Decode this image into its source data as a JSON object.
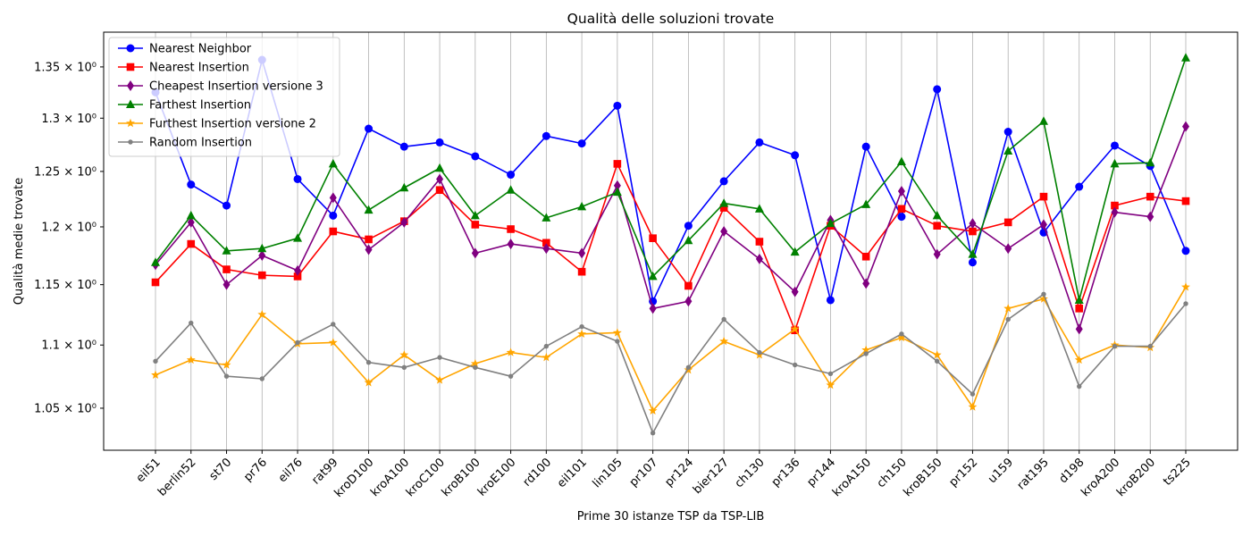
{
  "chart_data": {
    "type": "line",
    "title": "Qualità delle soluzioni trovate",
    "xlabel": "Prime 30 istanze TSP da TSP-LIB",
    "ylabel": "Qualità medie trovate",
    "y_scale": "log",
    "ylim": [
      1.018,
      1.385
    ],
    "y_ticks": [
      {
        "value": 1.05,
        "label": "1.05 × 10⁰"
      },
      {
        "value": 1.1,
        "label": "1.1 × 10⁰"
      },
      {
        "value": 1.15,
        "label": "1.15 × 10⁰"
      },
      {
        "value": 1.2,
        "label": "1.2 × 10⁰"
      },
      {
        "value": 1.25,
        "label": "1.25 × 10⁰"
      },
      {
        "value": 1.3,
        "label": "1.3 × 10⁰"
      },
      {
        "value": 1.35,
        "label": "1.35 × 10⁰"
      }
    ],
    "grid": "vertical",
    "legend_position": "upper-left",
    "categories": [
      "eil51",
      "berlin52",
      "st70",
      "pr76",
      "eil76",
      "rat99",
      "kroD100",
      "kroA100",
      "kroC100",
      "kroB100",
      "kroE100",
      "rd100",
      "eil101",
      "lin105",
      "pr107",
      "pr124",
      "bier127",
      "ch130",
      "pr136",
      "pr144",
      "kroA150",
      "ch150",
      "kroB150",
      "pr152",
      "u159",
      "rat195",
      "d198",
      "kroA200",
      "kroB200",
      "ts225"
    ],
    "series": [
      {
        "name": "Nearest Neighbor",
        "color": "#0000ff",
        "marker": "circle",
        "values": [
          1.325,
          1.238,
          1.219,
          1.357,
          1.243,
          1.21,
          1.29,
          1.273,
          1.277,
          1.264,
          1.247,
          1.283,
          1.276,
          1.312,
          1.136,
          1.201,
          1.241,
          1.277,
          1.265,
          1.137,
          1.273,
          1.209,
          1.328,
          1.169,
          1.287,
          1.195,
          1.236,
          1.274,
          1.255,
          1.179
        ]
      },
      {
        "name": "Nearest Insertion",
        "color": "#ff0000",
        "marker": "square",
        "values": [
          1.152,
          1.185,
          1.163,
          1.158,
          1.157,
          1.196,
          1.189,
          1.205,
          1.233,
          1.202,
          1.198,
          1.186,
          1.161,
          1.257,
          1.19,
          1.149,
          1.217,
          1.187,
          1.112,
          1.201,
          1.174,
          1.216,
          1.201,
          1.196,
          1.204,
          1.227,
          1.13,
          1.219,
          1.227,
          1.223
        ]
      },
      {
        "name": "Cheapest Insertion versione 3",
        "color": "#800080",
        "marker": "diamond",
        "values": [
          1.167,
          1.204,
          1.15,
          1.175,
          1.162,
          1.226,
          1.18,
          1.204,
          1.243,
          1.177,
          1.185,
          1.181,
          1.177,
          1.237,
          1.13,
          1.136,
          1.196,
          1.172,
          1.144,
          1.206,
          1.151,
          1.232,
          1.176,
          1.203,
          1.181,
          1.202,
          1.113,
          1.213,
          1.209,
          1.292
        ]
      },
      {
        "name": "Farthest Insertion",
        "color": "#008000",
        "marker": "triangle",
        "values": [
          1.169,
          1.21,
          1.179,
          1.181,
          1.19,
          1.257,
          1.215,
          1.235,
          1.253,
          1.21,
          1.233,
          1.208,
          1.218,
          1.231,
          1.157,
          1.188,
          1.221,
          1.216,
          1.178,
          1.203,
          1.22,
          1.259,
          1.21,
          1.176,
          1.269,
          1.297,
          1.137,
          1.257,
          1.258,
          1.359
        ]
      },
      {
        "name": "Furthest Insertion versione 2",
        "color": "#ffa500",
        "marker": "star",
        "values": [
          1.076,
          1.088,
          1.084,
          1.125,
          1.101,
          1.102,
          1.07,
          1.092,
          1.072,
          1.085,
          1.094,
          1.09,
          1.109,
          1.11,
          1.048,
          1.08,
          1.103,
          1.092,
          1.113,
          1.068,
          1.096,
          1.106,
          1.092,
          1.051,
          1.13,
          1.138,
          1.088,
          1.1,
          1.098,
          1.148
        ]
      },
      {
        "name": "Random Insertion",
        "color": "#808080",
        "marker": "small-circle",
        "values": [
          1.087,
          1.118,
          1.075,
          1.073,
          1.102,
          1.117,
          1.086,
          1.082,
          1.09,
          1.082,
          1.075,
          1.099,
          1.115,
          1.103,
          1.031,
          1.082,
          1.121,
          1.094,
          1.084,
          1.077,
          1.093,
          1.109,
          1.087,
          1.061,
          1.121,
          1.142,
          1.067,
          1.099,
          1.099,
          1.134
        ]
      }
    ]
  }
}
